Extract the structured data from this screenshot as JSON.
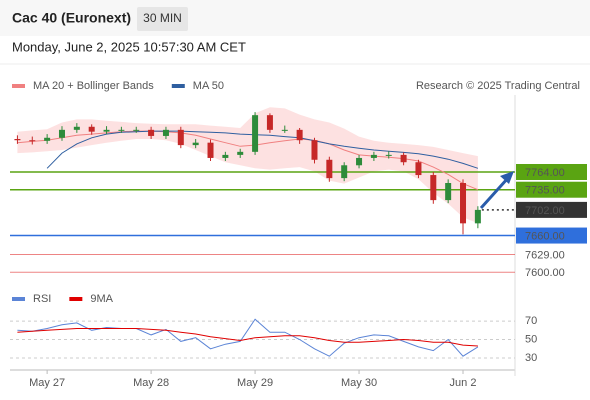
{
  "header": {
    "title": "Cac 40 (Euronext)",
    "interval": "30 MIN",
    "timestamp": "Monday, June 2, 2025 10:57:30 AM CET"
  },
  "chart_data": [
    {
      "type": "candlestick",
      "source": "Research © 2025 Trading Central",
      "xlim": [
        -0.5,
        33.5
      ],
      "ylim": [
        7584,
        7890
      ],
      "up_color": "#2e8b3a",
      "down_color": "#c62828",
      "open": [
        7818,
        7816,
        7815,
        7820,
        7833,
        7838,
        7830,
        7833,
        7833,
        7833,
        7823,
        7833,
        7808,
        7812,
        7787,
        7792,
        7797,
        7857,
        7833,
        7833,
        7816,
        7784,
        7754,
        7775,
        7787,
        7792,
        7792,
        7780,
        7759,
        7718,
        7746,
        7680
      ],
      "high": [
        7824,
        7822,
        7826,
        7839,
        7844,
        7842,
        7839,
        7838,
        7838,
        7838,
        7838,
        7838,
        7818,
        7817,
        7797,
        7802,
        7862,
        7860,
        7840,
        7836,
        7820,
        7789,
        7780,
        7792,
        7797,
        7798,
        7796,
        7784,
        7764,
        7752,
        7752,
        7708
      ],
      "low": [
        7810,
        7809,
        7810,
        7815,
        7828,
        7825,
        7826,
        7828,
        7828,
        7818,
        7818,
        7803,
        7803,
        7782,
        7782,
        7787,
        7792,
        7828,
        7828,
        7810,
        7778,
        7748,
        7749,
        7770,
        7782,
        7786,
        7775,
        7754,
        7712,
        7713,
        7662,
        7672
      ],
      "close": [
        7816,
        7815,
        7820,
        7833,
        7838,
        7830,
        7833,
        7833,
        7833,
        7823,
        7833,
        7808,
        7812,
        7787,
        7792,
        7797,
        7857,
        7833,
        7833,
        7816,
        7784,
        7754,
        7775,
        7787,
        7792,
        7792,
        7780,
        7759,
        7718,
        7746,
        7680,
        7702
      ],
      "series": [
        {
          "name": "MA 20 + Bollinger Bands",
          "color": "#f08080",
          "band_color": "#fcd9d9",
          "values": [
            7812,
            7814,
            7816,
            7820,
            7824,
            7826,
            7828,
            7830,
            7831,
            7831,
            7830,
            7828,
            7824,
            7818,
            7812,
            7806,
            7808,
            7812,
            7815,
            7818,
            7816,
            7810,
            7800,
            7792,
            7790,
            7788,
            7786,
            7782,
            7772,
            7760,
            7745,
            7735
          ],
          "upper": [
            7830,
            7832,
            7834,
            7845,
            7850,
            7850,
            7848,
            7846,
            7844,
            7843,
            7842,
            7842,
            7842,
            7840,
            7838,
            7836,
            7860,
            7870,
            7868,
            7858,
            7850,
            7845,
            7835,
            7822,
            7815,
            7812,
            7810,
            7808,
            7805,
            7800,
            7795,
            7790
          ],
          "lower": [
            7795,
            7796,
            7798,
            7800,
            7804,
            7808,
            7812,
            7815,
            7818,
            7818,
            7816,
            7810,
            7800,
            7790,
            7780,
            7775,
            7770,
            7768,
            7770,
            7772,
            7765,
            7750,
            7745,
            7755,
            7765,
            7768,
            7765,
            7752,
            7730,
            7712,
            7690,
            7680
          ]
        },
        {
          "name": "MA 50",
          "color": "#2f5fa0",
          "values": [
            null,
            null,
            7770,
            7795,
            7810,
            7820,
            7826,
            7829,
            7830,
            7831,
            7831,
            7831,
            7830,
            7829,
            7828,
            7826,
            7825,
            7824,
            7822,
            7820,
            7815,
            7810,
            7806,
            7803,
            7800,
            7798,
            7796,
            7794,
            7790,
            7785,
            7778,
            7770
          ]
        }
      ],
      "levels": [
        {
          "value": 7764,
          "label": "7764.00",
          "color": "#5aa412",
          "boxed": true,
          "style": "solid"
        },
        {
          "value": 7735,
          "label": "7735.00",
          "color": "#5aa412",
          "boxed": true,
          "style": "solid"
        },
        {
          "value": 7702,
          "label": "7702.00",
          "color": "#333333",
          "boxed": true,
          "style": "dotted"
        },
        {
          "value": 7660,
          "label": "7660.00",
          "color": "#2f6fdc",
          "boxed": true,
          "style": "solid"
        },
        {
          "value": 7629,
          "label": "7629.00",
          "color": "#e02020",
          "boxed": false,
          "style": "solid"
        },
        {
          "value": 7600,
          "label": "7600.00",
          "color": "#e02020",
          "boxed": false,
          "style": "solid"
        }
      ]
    },
    {
      "type": "line",
      "xlim": [
        -0.5,
        33.5
      ],
      "xticks": [
        {
          "value": 2,
          "label": "May 27"
        },
        {
          "value": 9,
          "label": "May 28"
        },
        {
          "value": 16,
          "label": "May 29"
        },
        {
          "value": 23,
          "label": "May 30"
        },
        {
          "value": 30,
          "label": "Jun 2"
        }
      ],
      "ylim": [
        17,
        82
      ],
      "yticks": [
        70,
        50,
        30
      ],
      "grid": true,
      "series": [
        {
          "name": "RSI",
          "color": "#5b84d6",
          "values": [
            60,
            59,
            62,
            66,
            68,
            60,
            63,
            62,
            62,
            55,
            61,
            48,
            52,
            40,
            45,
            48,
            72,
            58,
            58,
            50,
            40,
            32,
            46,
            52,
            55,
            54,
            48,
            42,
            38,
            50,
            32,
            42
          ]
        },
        {
          "name": "9MA",
          "color": "#e00000",
          "values": [
            58,
            59,
            60,
            61,
            62,
            62,
            62,
            62,
            62,
            61,
            60,
            58,
            56,
            53,
            51,
            49,
            52,
            53,
            54,
            54,
            52,
            49,
            47,
            47,
            48,
            49,
            50,
            49,
            47,
            47,
            44,
            43
          ]
        }
      ]
    }
  ]
}
